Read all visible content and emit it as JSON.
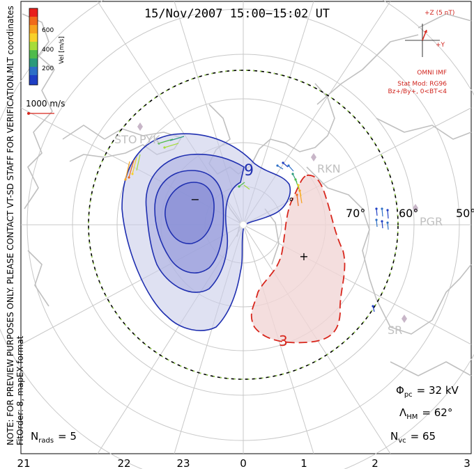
{
  "title": "15/Nov/2007  15:00−15:02  UT",
  "colorbar": {
    "label": "Vel [m/s]",
    "ticks": [
      "600",
      "400",
      "200"
    ],
    "colors": [
      "#e8201c",
      "#f06a1a",
      "#f7a21e",
      "#f8d12a",
      "#a6dc3a",
      "#4fbb4b",
      "#2a9a7a",
      "#2d6fc6",
      "#1f3fc4"
    ]
  },
  "side_text": {
    "coords": "MLT coordinates",
    "note": "NOTE: FOR PREVIEW PURPOSES ONLY.  PLEASE CONTACT VT-SD STAFF FOR VERIFICATION.",
    "fitorder": "FitOrder: 8,  mapEX format"
  },
  "scale_vector": {
    "label": "1000 m/s"
  },
  "imf": {
    "z_label": "+Z (5 nT)",
    "y_label": "+Y",
    "source": "OMNI IMF",
    "model": "Stat Mod: RG96",
    "condition": "Bz+/By+, 0<BT<4"
  },
  "stations": [
    "STO",
    "PYK",
    "RKN",
    "PGR",
    "SR"
  ],
  "latitude_labels": [
    "70°",
    "60°",
    "50°",
    "°"
  ],
  "contours": {
    "negative_label": "9",
    "positive_label": "3",
    "min_marker": "−",
    "max_marker": "+"
  },
  "stats": {
    "phi_symbol": "Φ",
    "phi_sub": "pc",
    "phi_value": "= 32 kV",
    "lambda_symbol": "Λ",
    "lambda_sub": "HM",
    "lambda_value": "= 62°",
    "nvc_symbol": "N",
    "nvc_sub": "vc",
    "nvc_value": "= 65",
    "nrads_symbol": "N",
    "nrads_sub": "rads",
    "nrads_value": "= 5"
  },
  "mlt_axis": [
    "21",
    "22",
    "23",
    "0",
    "1",
    "2",
    "3"
  ],
  "colors": {
    "convection_negative": "#1f2fb0",
    "convection_positive": "#d8261c",
    "negative_fill": "#c9cdea",
    "positive_fill": "#f1d6d6",
    "grid": "#c8c8c8",
    "coastline": "#c0c0c0",
    "heppner_maynard": "#000000",
    "imf_text": "#d0231c"
  }
}
